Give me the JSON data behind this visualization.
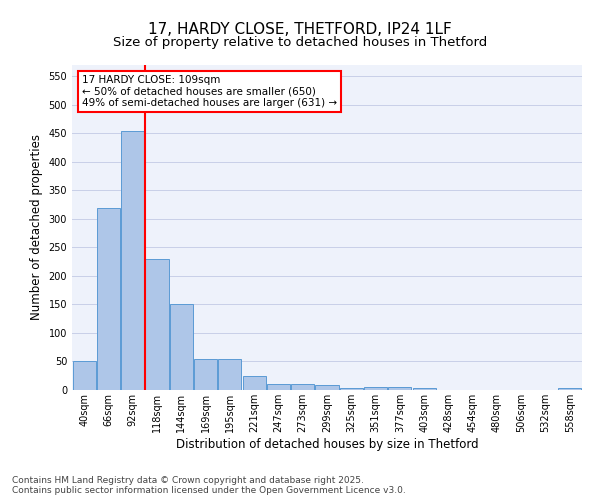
{
  "title1": "17, HARDY CLOSE, THETFORD, IP24 1LF",
  "title2": "Size of property relative to detached houses in Thetford",
  "xlabel": "Distribution of detached houses by size in Thetford",
  "ylabel": "Number of detached properties",
  "categories": [
    "40sqm",
    "66sqm",
    "92sqm",
    "118sqm",
    "144sqm",
    "169sqm",
    "195sqm",
    "221sqm",
    "247sqm",
    "273sqm",
    "299sqm",
    "325sqm",
    "351sqm",
    "377sqm",
    "403sqm",
    "428sqm",
    "454sqm",
    "480sqm",
    "506sqm",
    "532sqm",
    "558sqm"
  ],
  "values": [
    50,
    320,
    455,
    230,
    150,
    55,
    55,
    25,
    10,
    10,
    8,
    3,
    6,
    6,
    3,
    0,
    0,
    0,
    0,
    0,
    3
  ],
  "bar_color": "#aec6e8",
  "bar_edge_color": "#5b9bd5",
  "vline_color": "red",
  "vline_xidx": 2,
  "annotation_line1": "17 HARDY CLOSE: 109sqm",
  "annotation_line2": "← 50% of detached houses are smaller (650)",
  "annotation_line3": "49% of semi-detached houses are larger (631) →",
  "annotation_box_color": "white",
  "annotation_box_edge_color": "red",
  "ylim": [
    0,
    570
  ],
  "yticks": [
    0,
    50,
    100,
    150,
    200,
    250,
    300,
    350,
    400,
    450,
    500,
    550
  ],
  "bg_color": "#eef2fb",
  "grid_color": "#c8cfe8",
  "footer_line1": "Contains HM Land Registry data © Crown copyright and database right 2025.",
  "footer_line2": "Contains public sector information licensed under the Open Government Licence v3.0.",
  "title_fontsize": 11,
  "subtitle_fontsize": 9.5,
  "axis_label_fontsize": 8.5,
  "tick_fontsize": 7,
  "annot_fontsize": 7.5,
  "footer_fontsize": 6.5
}
